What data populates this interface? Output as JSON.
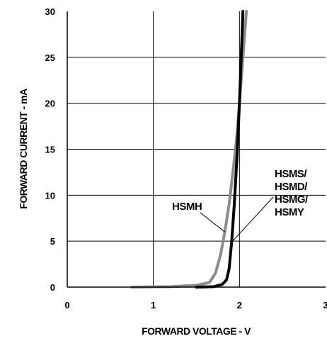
{
  "chart_data": {
    "type": "line",
    "xlabel": "FORWARD VOLTAGE  - V",
    "ylabel": "FORWARD CURRENT - mA",
    "xlim": [
      0,
      3
    ],
    "ylim": [
      0,
      30
    ],
    "x_ticks": [
      "0",
      "1",
      "2",
      "3"
    ],
    "y_ticks": [
      "0",
      "5",
      "10",
      "15",
      "20",
      "25",
      "30"
    ],
    "grid": true,
    "colors": {
      "HSMH": "#8c8c8c",
      "HSMS/HSMD/HSMG/HSMY": "#000000"
    },
    "series": [
      {
        "name": "HSMH",
        "points": [
          [
            0.75,
            0.0
          ],
          [
            1.2,
            0.05
          ],
          [
            1.5,
            0.2
          ],
          [
            1.65,
            0.5
          ],
          [
            1.72,
            1.5
          ],
          [
            1.78,
            3.5
          ],
          [
            1.83,
            6.0
          ],
          [
            1.88,
            9.0
          ],
          [
            1.93,
            13.0
          ],
          [
            1.97,
            16.5
          ],
          [
            2.0,
            20.0
          ],
          [
            2.04,
            25.0
          ],
          [
            2.08,
            30.0
          ]
        ]
      },
      {
        "name": "HSMS/HSMD/HSMG/HSMY",
        "points": [
          [
            1.5,
            0.0
          ],
          [
            1.7,
            0.05
          ],
          [
            1.8,
            0.3
          ],
          [
            1.85,
            0.8
          ],
          [
            1.88,
            2.0
          ],
          [
            1.91,
            5.0
          ],
          [
            1.94,
            9.0
          ],
          [
            1.97,
            14.0
          ],
          [
            2.0,
            20.0
          ],
          [
            2.02,
            25.0
          ],
          [
            2.04,
            30.0
          ]
        ]
      }
    ],
    "annotations": [
      {
        "text": "HSMH",
        "points_to": [
          1.83,
          6.0
        ]
      },
      {
        "lines": [
          "HSMS/",
          "HSMD/",
          "HSMG/",
          "HSMY"
        ],
        "points_to": [
          1.92,
          5.0
        ]
      }
    ]
  }
}
